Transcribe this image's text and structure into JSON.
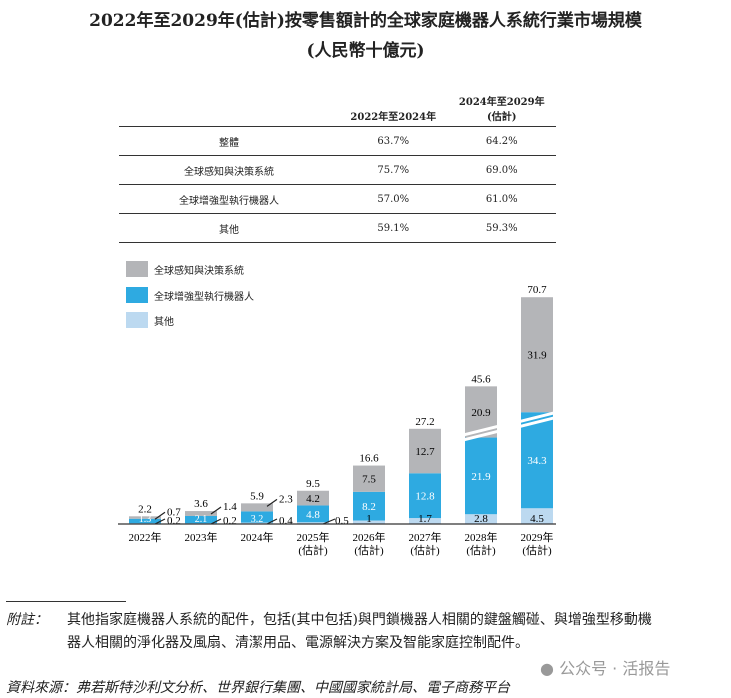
{
  "title": "2022年至2029年(估計)按零售額計的全球家庭機器人系統行業市場規模",
  "subtitle": "(人民幣十億元)",
  "cagr_table": {
    "headers": [
      "",
      "2022年至2024年",
      "2024年至2029年",
      "(估計)"
    ],
    "rows": [
      {
        "label": "整體",
        "c1": "63.7%",
        "c2": "64.2%"
      },
      {
        "label": "全球感知與決策系統",
        "c1": "75.7%",
        "c2": "69.0%"
      },
      {
        "label": "全球增強型執行機器人",
        "c1": "57.0%",
        "c2": "61.0%"
      },
      {
        "label": "其他",
        "c1": "59.1%",
        "c2": "59.3%"
      }
    ]
  },
  "chart_data": {
    "type": "bar",
    "stacked": true,
    "categories": [
      "2022年",
      "2023年",
      "2024年",
      "2025年",
      "2026年",
      "2027年",
      "2028年",
      "2029年"
    ],
    "category_sublabels": [
      "",
      "",
      "",
      "(估計)",
      "(估計)",
      "(估計)",
      "(估計)",
      "(估計)"
    ],
    "series": [
      {
        "name": "其他",
        "color": "#bcd9f0",
        "values": [
          0.2,
          0.2,
          0.4,
          0.5,
          1.0,
          1.7,
          2.8,
          4.5
        ]
      },
      {
        "name": "全球增強型執行機器人",
        "color": "#2eaae1",
        "values": [
          1.3,
          2.1,
          3.2,
          4.8,
          8.2,
          12.8,
          21.9,
          34.3
        ]
      },
      {
        "name": "全球感知與決策系統",
        "color": "#b4b5b8",
        "values": [
          0.7,
          1.4,
          2.3,
          4.2,
          7.5,
          12.7,
          20.9,
          31.9
        ]
      }
    ],
    "totals": [
      2.2,
      3.6,
      5.9,
      9.5,
      16.6,
      27.2,
      45.6,
      70.7
    ],
    "axis_break": [
      "2028年",
      "2029年"
    ],
    "legend_position": "top-left",
    "grid": false
  },
  "notes": {
    "note_label": "附註：",
    "note_line1": "其他指家庭機器人系統的配件，包括(其中包括)與門鎖機器人相關的鍵盤觸碰、與增強型移動機",
    "note_line2": "器人相關的淨化器及風扇、清潔用品、電源解決方案及智能家庭控制配件。",
    "source": "資料來源：弗若斯特沙利文分析、世界銀行集團、中國國家統計局、電子商務平台"
  },
  "watermark": "公众号 · 活报告"
}
